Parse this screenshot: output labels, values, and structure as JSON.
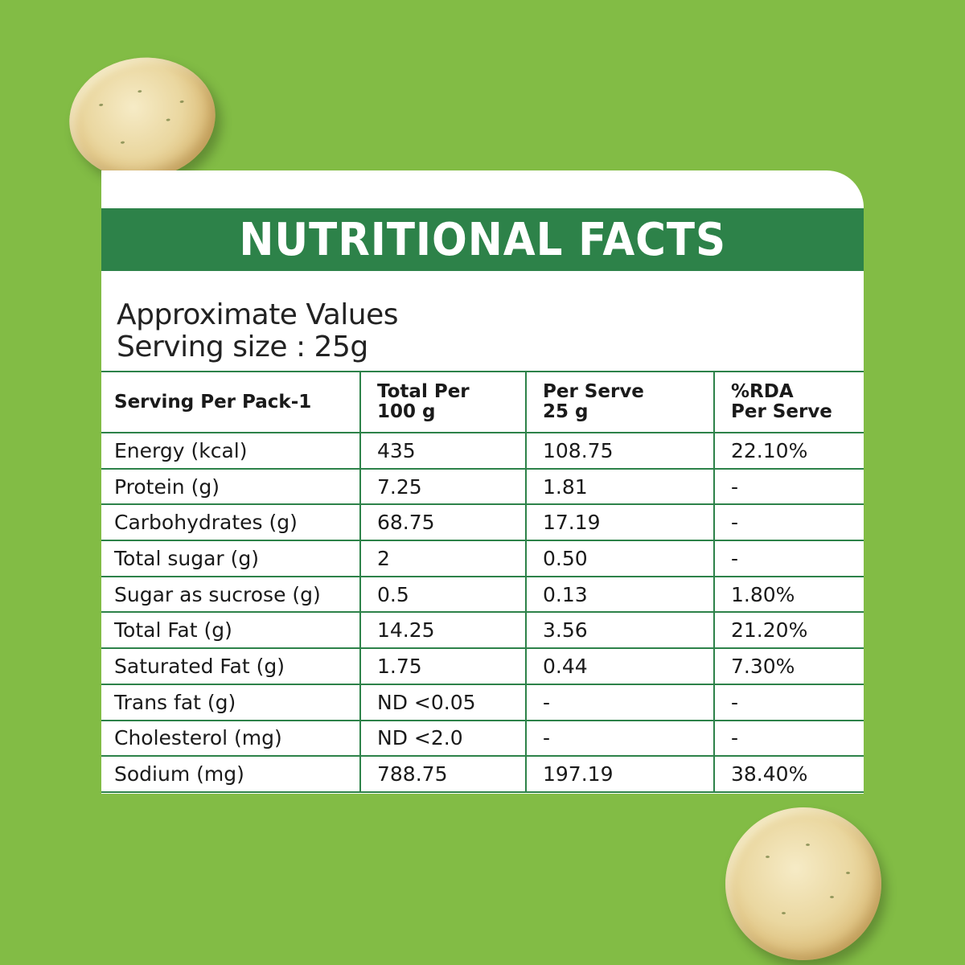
{
  "title": "NUTRITIONAL FACTS",
  "subtitle_line1": "Approximate Values",
  "subtitle_line2": "Serving size : 25g",
  "table": {
    "headers": [
      {
        "line1": "Serving Per Pack-1",
        "line2": ""
      },
      {
        "line1": "Total Per",
        "line2": "100 g"
      },
      {
        "line1": "Per Serve",
        "line2": "25 g"
      },
      {
        "line1": "%RDA",
        "line2": "Per Serve"
      }
    ],
    "rows": [
      [
        "Energy (kcal)",
        "435",
        "108.75",
        "22.10%"
      ],
      [
        "Protein (g)",
        "7.25",
        "1.81",
        "-"
      ],
      [
        "Carbohydrates (g)",
        "68.75",
        "17.19",
        "-"
      ],
      [
        "Total sugar (g)",
        "2",
        "0.50",
        "-"
      ],
      [
        "Sugar as sucrose (g)",
        "0.5",
        "0.13",
        "1.80%"
      ],
      [
        "Total Fat (g)",
        "14.25",
        "3.56",
        "21.20%"
      ],
      [
        "Saturated Fat (g)",
        "1.75",
        "0.44",
        "7.30%"
      ],
      [
        "Trans fat (g)",
        "ND <0.05",
        "-",
        "-"
      ],
      [
        "Cholesterol (mg)",
        "ND <2.0",
        "-",
        "-"
      ],
      [
        "Sodium (mg)",
        "788.75",
        "197.19",
        "38.40%"
      ]
    ]
  },
  "colors": {
    "background": "#82bc45",
    "accent": "#2d8249",
    "card": "#ffffff"
  }
}
